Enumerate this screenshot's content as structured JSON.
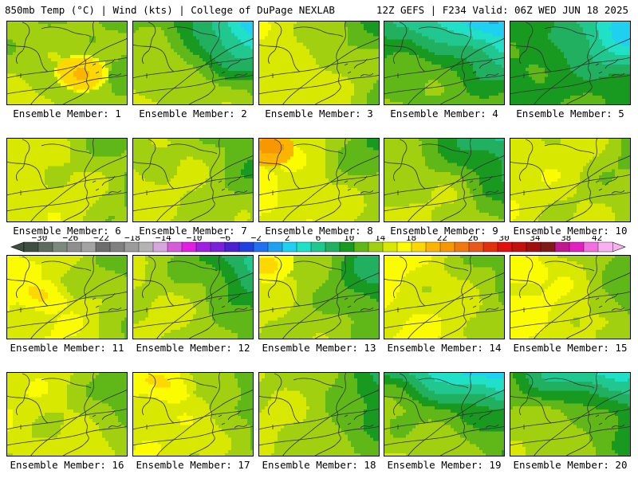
{
  "header": {
    "left": "850mb Temp (°C) | Wind (kts) | College of DuPage NEXLAB",
    "right": "12Z GEFS | F234 Valid: 06Z WED JUN 18 2025"
  },
  "member_label_prefix": "Ensemble Member:",
  "members": [
    {
      "id": 1,
      "label": "Ensemble Member: 1",
      "base": 18,
      "west": 0,
      "north": -1,
      "coolNE": 0,
      "coolN": 0,
      "hot": [
        0.62,
        0.62,
        24
      ]
    },
    {
      "id": 2,
      "label": "Ensemble Member: 2",
      "base": 17,
      "west": 1,
      "north": -2,
      "coolNE": 8,
      "coolN": 0,
      "hot": null
    },
    {
      "id": 3,
      "label": "Ensemble Member: 3",
      "base": 18,
      "west": 1,
      "north": 0,
      "coolNE": 2,
      "coolN": 0,
      "hot": null
    },
    {
      "id": 4,
      "label": "Ensemble Member: 4",
      "base": 16,
      "west": 0,
      "north": -3,
      "coolNE": 6,
      "coolN": 3,
      "hot": null
    },
    {
      "id": 5,
      "label": "Ensemble Member: 5",
      "base": 14,
      "west": 0,
      "north": -1,
      "coolNE": 6,
      "coolN": 0,
      "hot": null
    },
    {
      "id": 6,
      "label": "Ensemble Member: 6",
      "base": 18,
      "west": 1,
      "north": 0,
      "coolNE": 1,
      "coolN": 0,
      "hot": null
    },
    {
      "id": 7,
      "label": "Ensemble Member: 7",
      "base": 18,
      "west": 0,
      "north": 0,
      "coolNE": 2,
      "coolN": 0,
      "hot": null
    },
    {
      "id": 8,
      "label": "Ensemble Member: 8",
      "base": 18,
      "west": 2,
      "north": 0,
      "coolNE": 2,
      "coolN": 0,
      "hot": [
        0.08,
        0.12,
        27
      ]
    },
    {
      "id": 9,
      "label": "Ensemble Member: 9",
      "base": 17,
      "west": 1,
      "north": -1,
      "coolNE": 5,
      "coolN": 0,
      "hot": null
    },
    {
      "id": 10,
      "label": "Ensemble Member: 10",
      "base": 18,
      "west": 1,
      "north": 0,
      "coolNE": 0,
      "coolN": 0,
      "hot": null
    },
    {
      "id": 11,
      "label": "Ensemble Member: 11",
      "base": 18,
      "west": 2,
      "north": 0,
      "coolNE": 1,
      "coolN": 0,
      "hot": [
        0.3,
        0.5,
        23
      ]
    },
    {
      "id": 12,
      "label": "Ensemble Member: 12",
      "base": 17,
      "west": 1,
      "north": 0,
      "coolNE": 6,
      "coolN": 0,
      "hot": null
    },
    {
      "id": 13,
      "label": "Ensemble Member: 13",
      "base": 16,
      "west": 2,
      "north": 0,
      "coolNE": 3,
      "coolN": 0,
      "hot": [
        0.08,
        0.1,
        24
      ]
    },
    {
      "id": 14,
      "label": "Ensemble Member: 14",
      "base": 18,
      "west": 2,
      "north": 0,
      "coolNE": 1,
      "coolN": 0,
      "hot": null
    },
    {
      "id": 15,
      "label": "Ensemble Member: 15",
      "base": 18,
      "west": 2,
      "north": 0,
      "coolNE": 2,
      "coolN": 0,
      "hot": [
        0.1,
        0.2,
        23
      ]
    },
    {
      "id": 16,
      "label": "Ensemble Member: 16",
      "base": 18,
      "west": 1,
      "north": 0,
      "coolNE": 1,
      "coolN": 0,
      "hot": null
    },
    {
      "id": 17,
      "label": "Ensemble Member: 17",
      "base": 18,
      "west": 1,
      "north": 1,
      "coolNE": 3,
      "coolN": 0,
      "hot": [
        0.3,
        0.15,
        23
      ]
    },
    {
      "id": 18,
      "label": "Ensemble Member: 18",
      "base": 16,
      "west": 2,
      "north": 0,
      "coolNE": 2,
      "coolN": 0,
      "hot": null
    },
    {
      "id": 19,
      "label": "Ensemble Member: 19",
      "base": 16,
      "west": 2,
      "north": -3,
      "coolNE": 2,
      "coolN": 7,
      "hot": null
    },
    {
      "id": 20,
      "label": "Ensemble Member: 20",
      "base": 16,
      "west": 2,
      "north": -2,
      "coolNE": 2,
      "coolN": 6,
      "hot": null
    }
  ],
  "colorbar": {
    "unit": "°C",
    "min": -32,
    "max": 44,
    "step": 2,
    "tick_labels": [
      "−30",
      "−26",
      "−22",
      "−18",
      "−14",
      "−10",
      "−6",
      "−2",
      "2",
      "6",
      "10",
      "14",
      "18",
      "22",
      "26",
      "30",
      "34",
      "38",
      "42"
    ],
    "tick_values": [
      -30,
      -26,
      -22,
      -18,
      -14,
      -10,
      -6,
      -2,
      2,
      6,
      10,
      14,
      18,
      22,
      26,
      30,
      34,
      38,
      42
    ],
    "colors": [
      "#3e4e40",
      "#5e6c60",
      "#7c8a7e",
      "#8f8f8f",
      "#a3a3a3",
      "#6d6d6d",
      "#808080",
      "#9c9c9c",
      "#b4b4b4",
      "#d6a6dc",
      "#d45cd8",
      "#e020e0",
      "#a020e0",
      "#7a20d8",
      "#4a20d0",
      "#2040e0",
      "#2070f0",
      "#20a0f0",
      "#20d0f0",
      "#20e0c8",
      "#20c890",
      "#20b060",
      "#189a20",
      "#60b818",
      "#a0d010",
      "#d8e800",
      "#fcfc00",
      "#fcd800",
      "#fcb400",
      "#f89800",
      "#f07810",
      "#e85818",
      "#e03010",
      "#e01010",
      "#c01010",
      "#a01010",
      "#801818",
      "#c01890",
      "#e020c0",
      "#f070e0",
      "#f8b0f0"
    ]
  }
}
